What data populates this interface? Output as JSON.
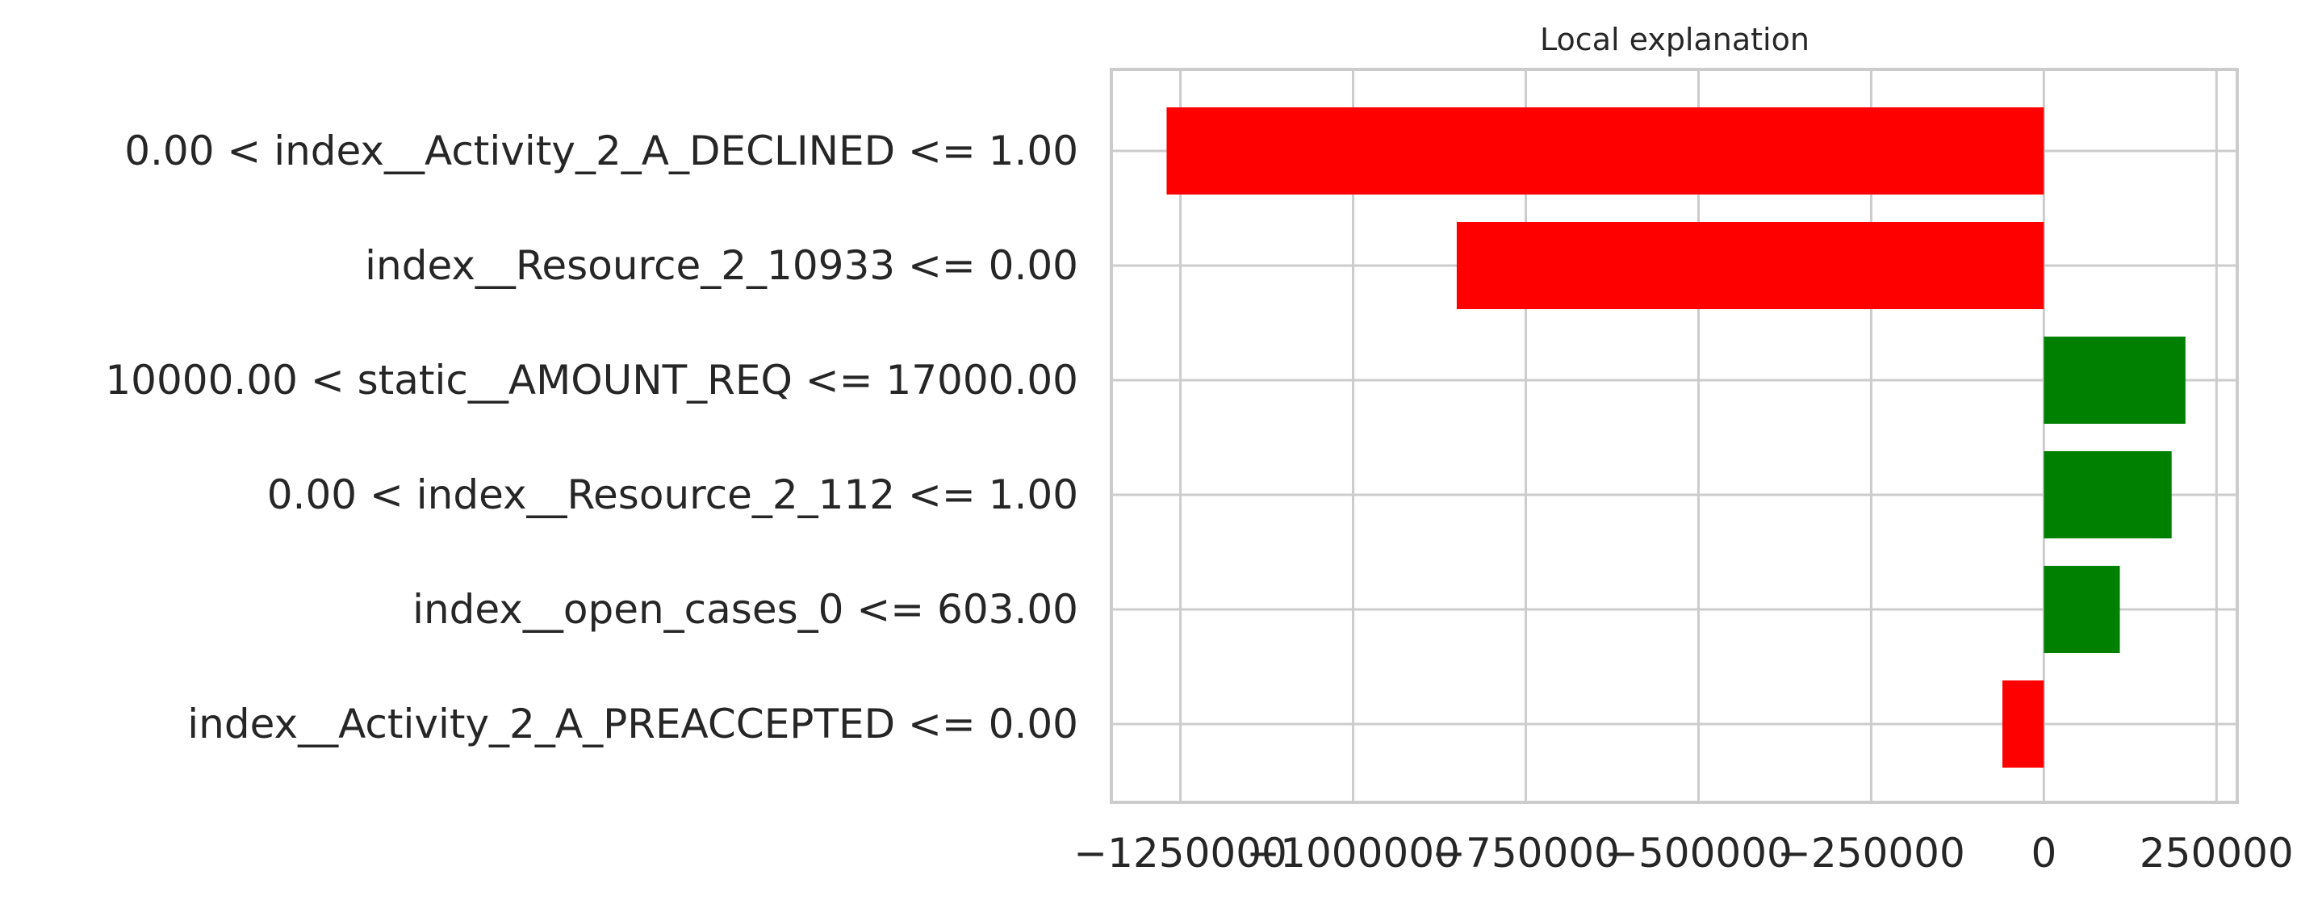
{
  "chart_data": {
    "type": "bar",
    "orientation": "horizontal",
    "title": "Local explanation",
    "xlabel": "",
    "ylabel": "",
    "xlim": [
      -1350000,
      280000
    ],
    "grid": true,
    "legend": "none",
    "categories": [
      "0.00 < index__Activity_2_A_DECLINED <= 1.00",
      "index__Resource_2_10933 <= 0.00",
      "10000.00 < static__AMOUNT_REQ <= 17000.00",
      "0.00 < index__Resource_2_112 <= 1.00",
      "index__open_cases_0 <= 603.00",
      "index__Activity_2_A_PREACCEPTED <= 0.00"
    ],
    "values": [
      -1270000,
      -850000,
      205000,
      185000,
      110000,
      -60000
    ],
    "xticks": [
      -1250000,
      -1000000,
      -750000,
      -500000,
      -250000,
      0,
      250000
    ],
    "xtick_labels": [
      "−1250000",
      "−1000000",
      "−750000",
      "−500000",
      "−250000",
      "0",
      "250000"
    ],
    "colors": {
      "positive": "#008000",
      "negative": "#ff0000",
      "grid": "#cccccc",
      "frame": "#cccccc"
    }
  }
}
